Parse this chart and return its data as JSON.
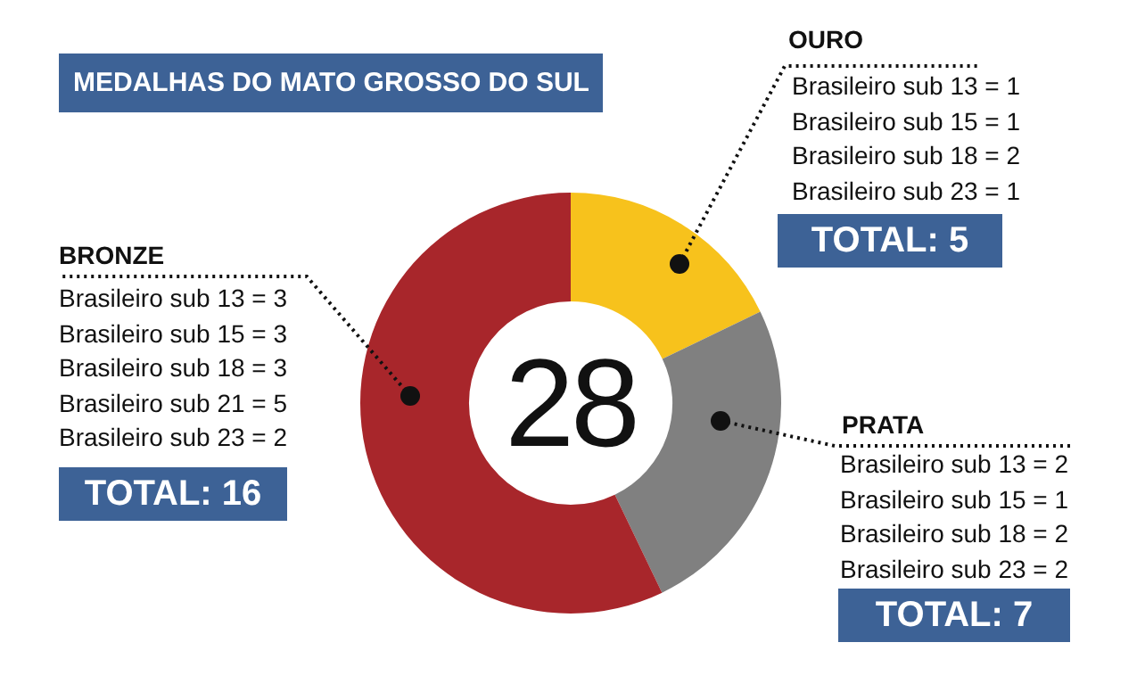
{
  "chart_data": {
    "type": "donut",
    "title": "MEDALHAS DO MATO GROSSO DO SUL",
    "categories": [
      "OURO",
      "PRATA",
      "BRONZE"
    ],
    "values": [
      5,
      7,
      16
    ],
    "colors": [
      "#f7c21c",
      "#808080",
      "#a8262b"
    ],
    "value_labels": [
      "TOTAL: 5",
      "TOTAL: 7",
      "TOTAL: 16"
    ],
    "legend": false,
    "annotations": [
      "28",
      {
        "text": "Brasileiro sub 13 = 1",
        "x": "OURO"
      },
      {
        "text": "Brasileiro sub 15 = 1",
        "x": "OURO"
      },
      {
        "text": "Brasileiro sub 18 = 2",
        "x": "OURO"
      },
      {
        "text": "Brasileiro sub 23 = 1",
        "x": "OURO"
      },
      {
        "text": "Brasileiro sub 13 = 2",
        "x": "PRATA"
      },
      {
        "text": "Brasileiro sub 15 = 1",
        "x": "PRATA"
      },
      {
        "text": "Brasileiro sub 18 = 2",
        "x": "PRATA"
      },
      {
        "text": "Brasileiro sub 23 = 2",
        "x": "PRATA"
      },
      {
        "text": "Brasileiro sub 13 = 3",
        "x": "BRONZE"
      },
      {
        "text": "Brasileiro sub 15 = 3",
        "x": "BRONZE"
      },
      {
        "text": "Brasileiro sub 18 = 3",
        "x": "BRONZE"
      },
      {
        "text": "Brasileiro sub 21 = 5",
        "x": "BRONZE"
      },
      {
        "text": "Brasileiro sub 23 = 2",
        "x": "BRONZE"
      }
    ]
  }
}
